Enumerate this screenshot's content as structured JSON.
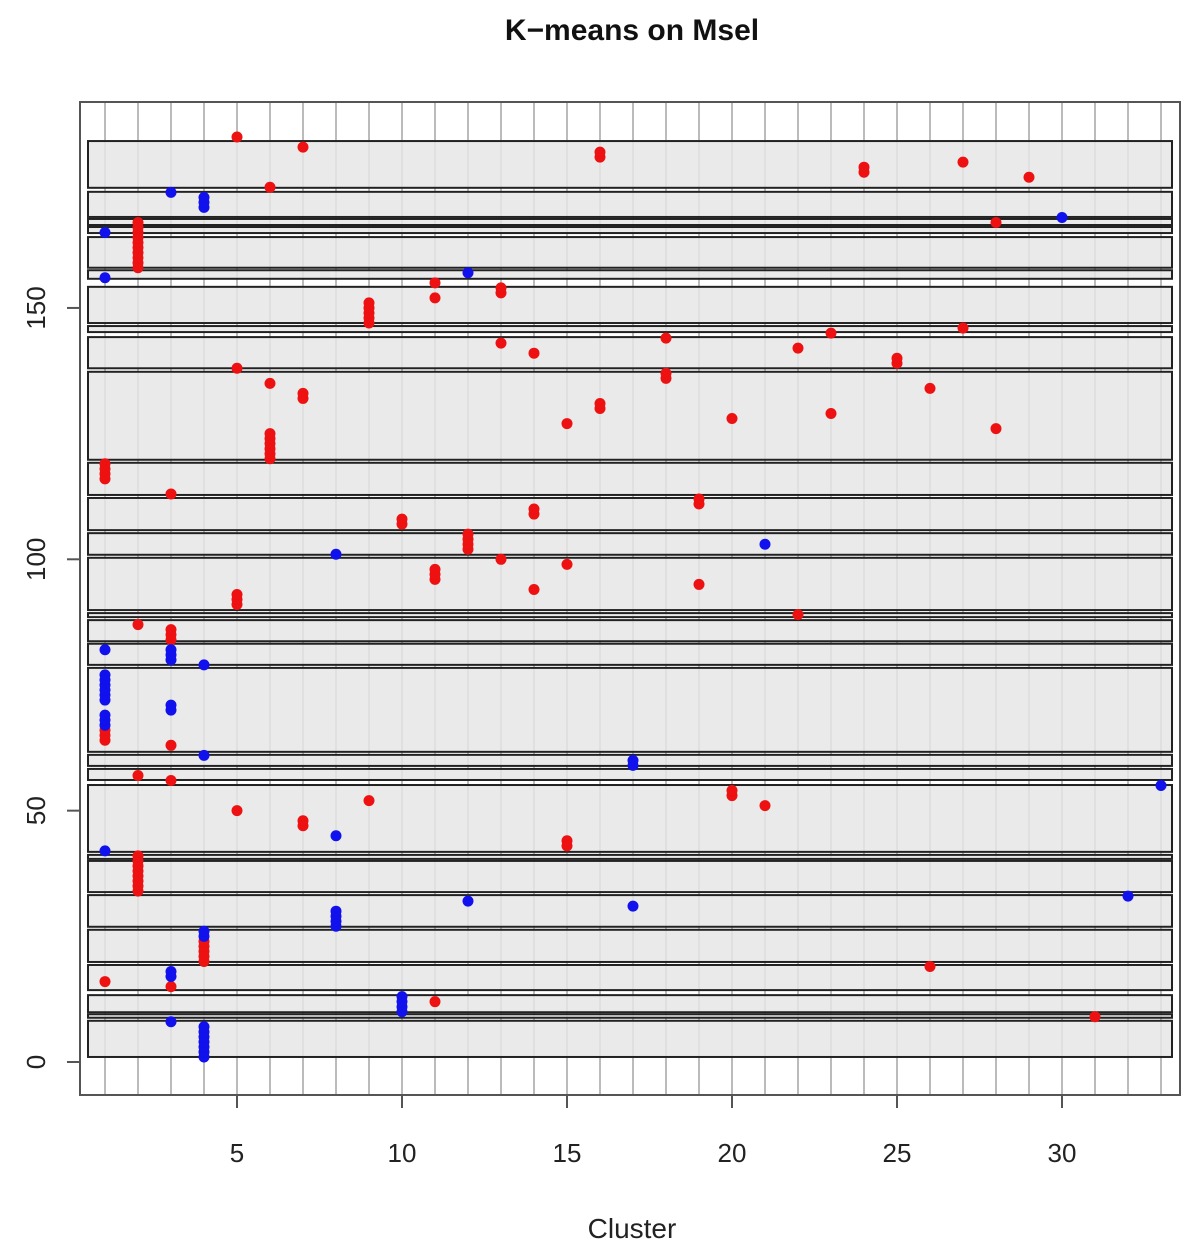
{
  "chart_data": {
    "type": "scatter",
    "title": "K−means on Msel",
    "xlabel": "Cluster",
    "ylabel": "",
    "xlim": [
      0.5,
      33.5
    ],
    "ylim": [
      -7,
      190
    ],
    "x_ticks": [
      "5",
      "10",
      "15",
      "20",
      "25",
      "30"
    ],
    "y_ticks": [
      "0",
      "50",
      "100",
      "150"
    ],
    "grid": "vertical line at each cluster 1-33",
    "colors": {
      "red": "#ee1111",
      "blue": "#1111ee",
      "band_fill": "#e6e6e6",
      "band_stroke": "#222222",
      "grid": "#bbbbbb"
    },
    "bands": [
      [
        173.9,
        183.2
      ],
      [
        168.1,
        173.1
      ],
      [
        166.5,
        167.7
      ],
      [
        164.9,
        166.1
      ],
      [
        158,
        164.1
      ],
      [
        155.8,
        157.5
      ],
      [
        147,
        154.2
      ],
      [
        145.2,
        146.4
      ],
      [
        138,
        144.2
      ],
      [
        119.8,
        137.3
      ],
      [
        112.8,
        119.2
      ],
      [
        105.8,
        112.2
      ],
      [
        100.9,
        105.2
      ],
      [
        89.9,
        100.3
      ],
      [
        88.5,
        89.3
      ],
      [
        83.7,
        87.9
      ],
      [
        79,
        83.2
      ],
      [
        61.7,
        78.4
      ],
      [
        58.9,
        61.1
      ],
      [
        56.1,
        58.3
      ],
      [
        41.8,
        55.1
      ],
      [
        40.4,
        41.2
      ],
      [
        33.8,
        40
      ],
      [
        26.9,
        33.2
      ],
      [
        19.9,
        26.3
      ],
      [
        14.3,
        19.3
      ],
      [
        9.9,
        13.3
      ],
      [
        8.8,
        9.5
      ],
      [
        1,
        8.2
      ]
    ],
    "series": [
      {
        "color": "red",
        "points": [
          [
            1,
            64
          ],
          [
            1,
            65
          ],
          [
            1,
            66
          ],
          [
            1,
            116
          ],
          [
            1,
            117
          ],
          [
            1,
            118
          ],
          [
            1,
            119
          ],
          [
            1,
            16
          ],
          [
            2,
            158
          ],
          [
            2,
            159
          ],
          [
            2,
            160
          ],
          [
            2,
            161
          ],
          [
            2,
            162
          ],
          [
            2,
            163
          ],
          [
            2,
            164
          ],
          [
            2,
            165
          ],
          [
            2,
            166
          ],
          [
            2,
            167
          ],
          [
            2,
            87
          ],
          [
            2,
            57
          ],
          [
            2,
            34
          ],
          [
            2,
            35
          ],
          [
            2,
            36
          ],
          [
            2,
            37
          ],
          [
            2,
            38
          ],
          [
            2,
            39
          ],
          [
            2,
            40
          ],
          [
            2,
            41
          ],
          [
            3,
            113
          ],
          [
            3,
            84
          ],
          [
            3,
            85
          ],
          [
            3,
            86
          ],
          [
            3,
            63
          ],
          [
            3,
            56
          ],
          [
            3,
            15
          ],
          [
            4,
            20
          ],
          [
            4,
            21
          ],
          [
            4,
            22
          ],
          [
            4,
            23
          ],
          [
            4,
            24
          ],
          [
            5,
            184
          ],
          [
            5,
            138
          ],
          [
            5,
            91
          ],
          [
            5,
            92
          ],
          [
            5,
            93
          ],
          [
            5,
            50
          ],
          [
            6,
            174
          ],
          [
            6,
            135
          ],
          [
            6,
            120
          ],
          [
            6,
            121
          ],
          [
            6,
            122
          ],
          [
            6,
            123
          ],
          [
            6,
            124
          ],
          [
            6,
            125
          ],
          [
            7,
            182
          ],
          [
            7,
            132
          ],
          [
            7,
            133
          ],
          [
            7,
            47
          ],
          [
            7,
            48
          ],
          [
            9,
            147
          ],
          [
            9,
            148
          ],
          [
            9,
            149
          ],
          [
            9,
            150
          ],
          [
            9,
            151
          ],
          [
            9,
            52
          ],
          [
            10,
            107
          ],
          [
            10,
            108
          ],
          [
            11,
            155
          ],
          [
            11,
            152
          ],
          [
            11,
            96
          ],
          [
            11,
            97
          ],
          [
            11,
            98
          ],
          [
            11,
            12
          ],
          [
            12,
            102
          ],
          [
            12,
            103
          ],
          [
            12,
            104
          ],
          [
            12,
            105
          ],
          [
            13,
            153
          ],
          [
            13,
            154
          ],
          [
            13,
            143
          ],
          [
            13,
            100
          ],
          [
            14,
            141
          ],
          [
            14,
            109
          ],
          [
            14,
            110
          ],
          [
            14,
            94
          ],
          [
            15,
            127
          ],
          [
            15,
            99
          ],
          [
            15,
            43
          ],
          [
            15,
            44
          ],
          [
            16,
            180
          ],
          [
            16,
            181
          ],
          [
            16,
            130
          ],
          [
            16,
            131
          ],
          [
            18,
            144
          ],
          [
            18,
            136
          ],
          [
            18,
            137
          ],
          [
            19,
            111
          ],
          [
            19,
            112
          ],
          [
            19,
            95
          ],
          [
            20,
            128
          ],
          [
            20,
            53
          ],
          [
            20,
            54
          ],
          [
            21,
            51
          ],
          [
            22,
            142
          ],
          [
            22,
            89
          ],
          [
            23,
            145
          ],
          [
            23,
            129
          ],
          [
            24,
            177
          ],
          [
            24,
            178
          ],
          [
            25,
            139
          ],
          [
            25,
            140
          ],
          [
            26,
            134
          ],
          [
            26,
            19
          ],
          [
            27,
            179
          ],
          [
            27,
            146
          ],
          [
            28,
            167
          ],
          [
            28,
            126
          ],
          [
            29,
            176
          ],
          [
            31,
            9
          ]
        ]
      },
      {
        "color": "blue",
        "points": [
          [
            1,
            165
          ],
          [
            1,
            156
          ],
          [
            1,
            82
          ],
          [
            1,
            72
          ],
          [
            1,
            73
          ],
          [
            1,
            74
          ],
          [
            1,
            75
          ],
          [
            1,
            76
          ],
          [
            1,
            77
          ],
          [
            1,
            67
          ],
          [
            1,
            68
          ],
          [
            1,
            69
          ],
          [
            1,
            42
          ],
          [
            3,
            173
          ],
          [
            3,
            80
          ],
          [
            3,
            81
          ],
          [
            3,
            82
          ],
          [
            3,
            70
          ],
          [
            3,
            71
          ],
          [
            3,
            17
          ],
          [
            3,
            18
          ],
          [
            3,
            8
          ],
          [
            4,
            170
          ],
          [
            4,
            171
          ],
          [
            4,
            172
          ],
          [
            4,
            79
          ],
          [
            4,
            61
          ],
          [
            4,
            25
          ],
          [
            4,
            26
          ],
          [
            4,
            1
          ],
          [
            4,
            2
          ],
          [
            4,
            3
          ],
          [
            4,
            4
          ],
          [
            4,
            5
          ],
          [
            4,
            6
          ],
          [
            4,
            7
          ],
          [
            8,
            101
          ],
          [
            8,
            45
          ],
          [
            8,
            27
          ],
          [
            8,
            28
          ],
          [
            8,
            29
          ],
          [
            8,
            30
          ],
          [
            10,
            10
          ],
          [
            10,
            11
          ],
          [
            10,
            12
          ],
          [
            10,
            13
          ],
          [
            12,
            157
          ],
          [
            12,
            32
          ],
          [
            17,
            59
          ],
          [
            17,
            60
          ],
          [
            17,
            31
          ],
          [
            21,
            103
          ],
          [
            30,
            168
          ],
          [
            32,
            33
          ],
          [
            33,
            55
          ]
        ]
      }
    ]
  }
}
